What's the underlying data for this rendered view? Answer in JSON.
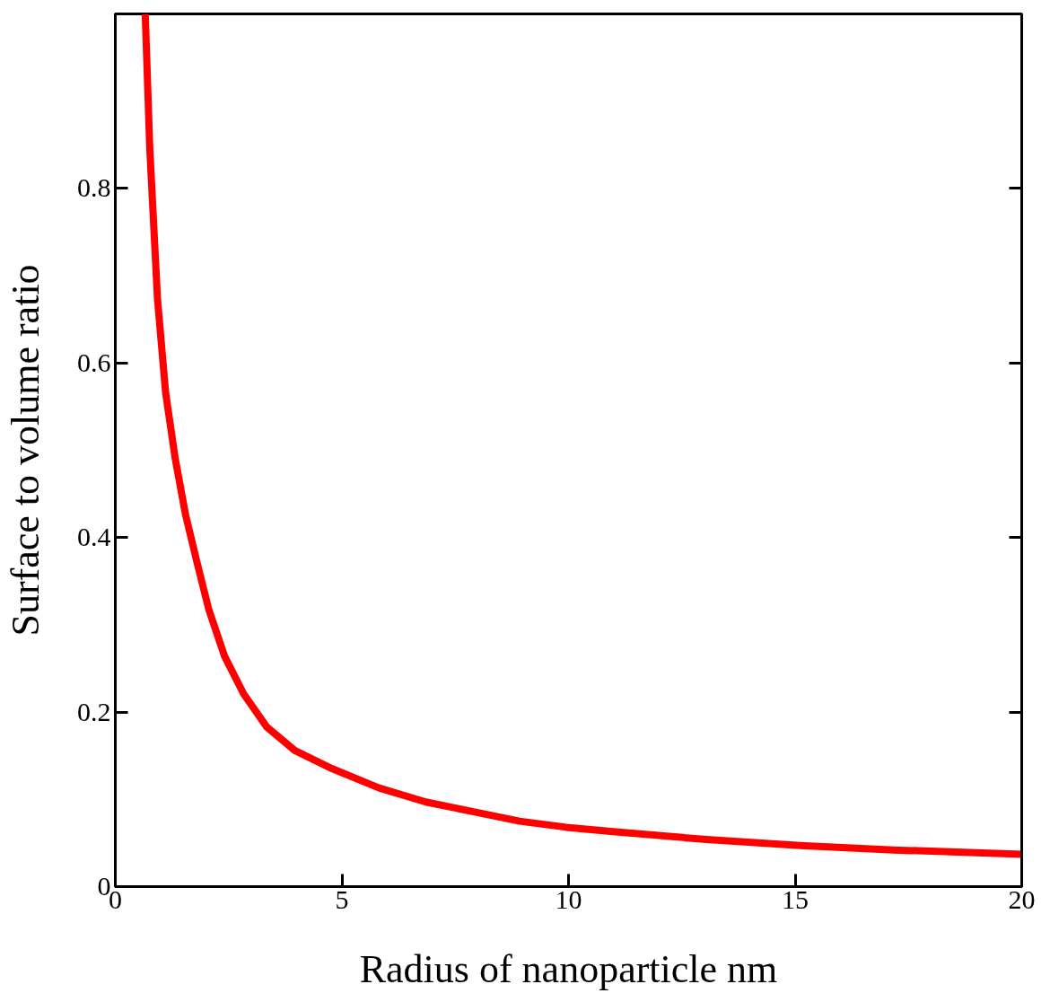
{
  "chart_data": {
    "type": "line",
    "xlabel": "Radius of nanoparticle nm",
    "ylabel": "Surface to volume ratio",
    "x": [
      0.66,
      0.76,
      0.93,
      1.11,
      1.32,
      1.55,
      1.8,
      2.06,
      2.41,
      2.83,
      3.34,
      3.96,
      4.79,
      5.82,
      6.85,
      7.88,
      8.92,
      9.95,
      10.98,
      13.04,
      15.11,
      17.17,
      20
    ],
    "series": [
      {
        "color": "#ff0000",
        "values": [
          1.0,
          0.846,
          0.674,
          0.566,
          0.491,
          0.426,
          0.372,
          0.318,
          0.264,
          0.221,
          0.183,
          0.156,
          0.135,
          0.113,
          0.097,
          0.086,
          0.075,
          0.068,
          0.063,
          0.054,
          0.047,
          0.042,
          0.037
        ]
      }
    ],
    "xlim": [
      0,
      20
    ],
    "ylim": [
      0,
      1
    ],
    "xticks": [
      0,
      5,
      10,
      15,
      20
    ],
    "yticks": [
      0,
      0.2,
      0.4,
      0.6,
      0.8
    ],
    "line_style": "solid",
    "marker": "none"
  }
}
